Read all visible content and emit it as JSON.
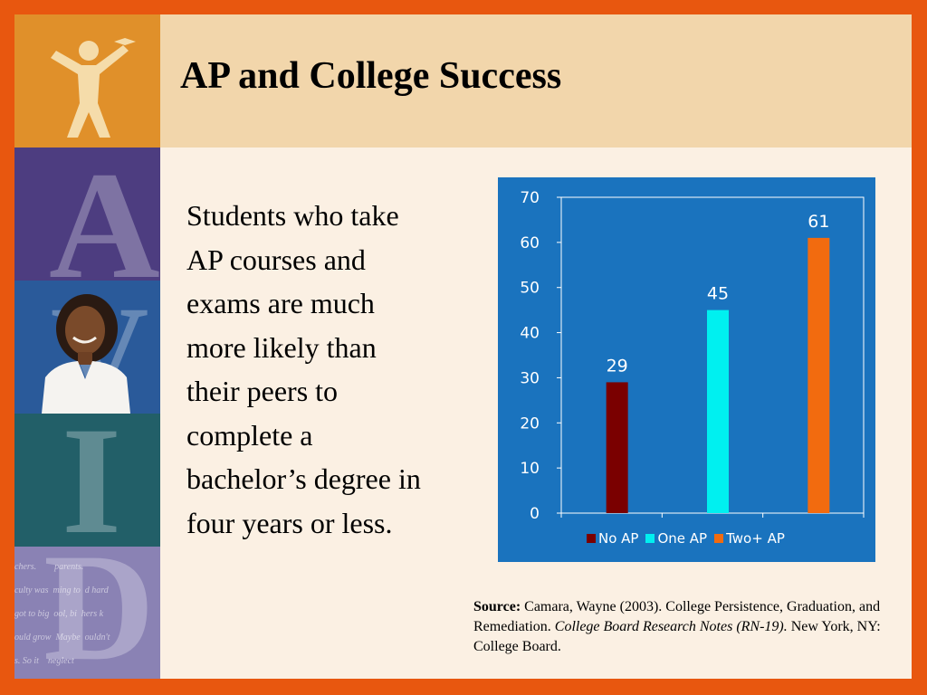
{
  "slide": {
    "title": "AP and College Success",
    "body": "Students who take AP courses and exams are much more likely than their peers to complete a bachelor’s degree in four years or less.",
    "source": {
      "label": "Source:",
      "text": "Camara, Wayne (2003). College Persistence, Graduation, and Remediation.",
      "italic": "College Board Research Notes (RN-19).",
      "tail": "New York, NY: College Board."
    }
  },
  "sidebar": {
    "letters": [
      "A",
      "V",
      "I",
      "D"
    ],
    "handwriting": [
      "chers.        parents.",
      "culty was  ming to  d hard",
      "got to big  ool, bi  hers k",
      "ould grow  Maybe  ouldn't",
      "s. So it    neglect"
    ]
  },
  "colors": {
    "frame": "#e8570f",
    "chart_bg": "#1a73be"
  },
  "chart_data": {
    "type": "bar",
    "categories": [
      "No AP",
      "One AP",
      "Two+ AP"
    ],
    "values": [
      29,
      45,
      61
    ],
    "colors": [
      "#7a0000",
      "#00f0f0",
      "#f26b0f"
    ],
    "ylim": [
      0,
      70
    ],
    "yticks": [
      0,
      10,
      20,
      30,
      40,
      50,
      60,
      70
    ],
    "grid": false,
    "legend": "bottom"
  }
}
